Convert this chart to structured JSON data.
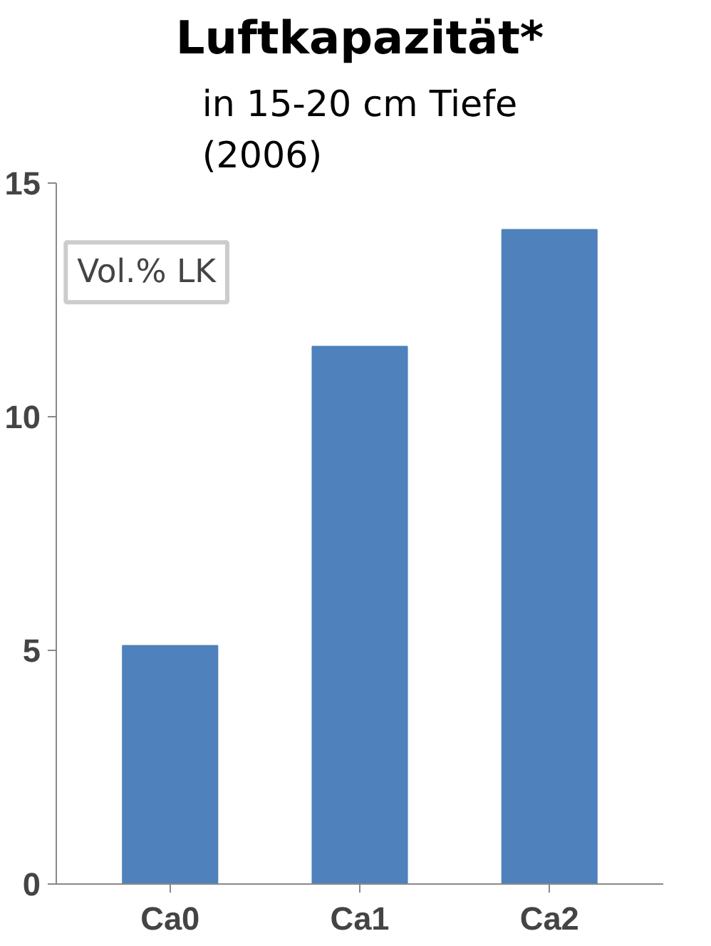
{
  "chart_data": {
    "type": "bar",
    "title": "Luftkapazität*",
    "subtitle": "in 15-20 cm Tiefe\n(2006)",
    "ylabel": "Vol.% LK",
    "categories": [
      "Ca0",
      "Ca1",
      "Ca2"
    ],
    "values": [
      5.1,
      11.5,
      14.0
    ],
    "color": "#4f81bd",
    "ylim": [
      0,
      15
    ],
    "yticks": [
      0,
      5,
      10,
      15
    ],
    "grid": false
  }
}
